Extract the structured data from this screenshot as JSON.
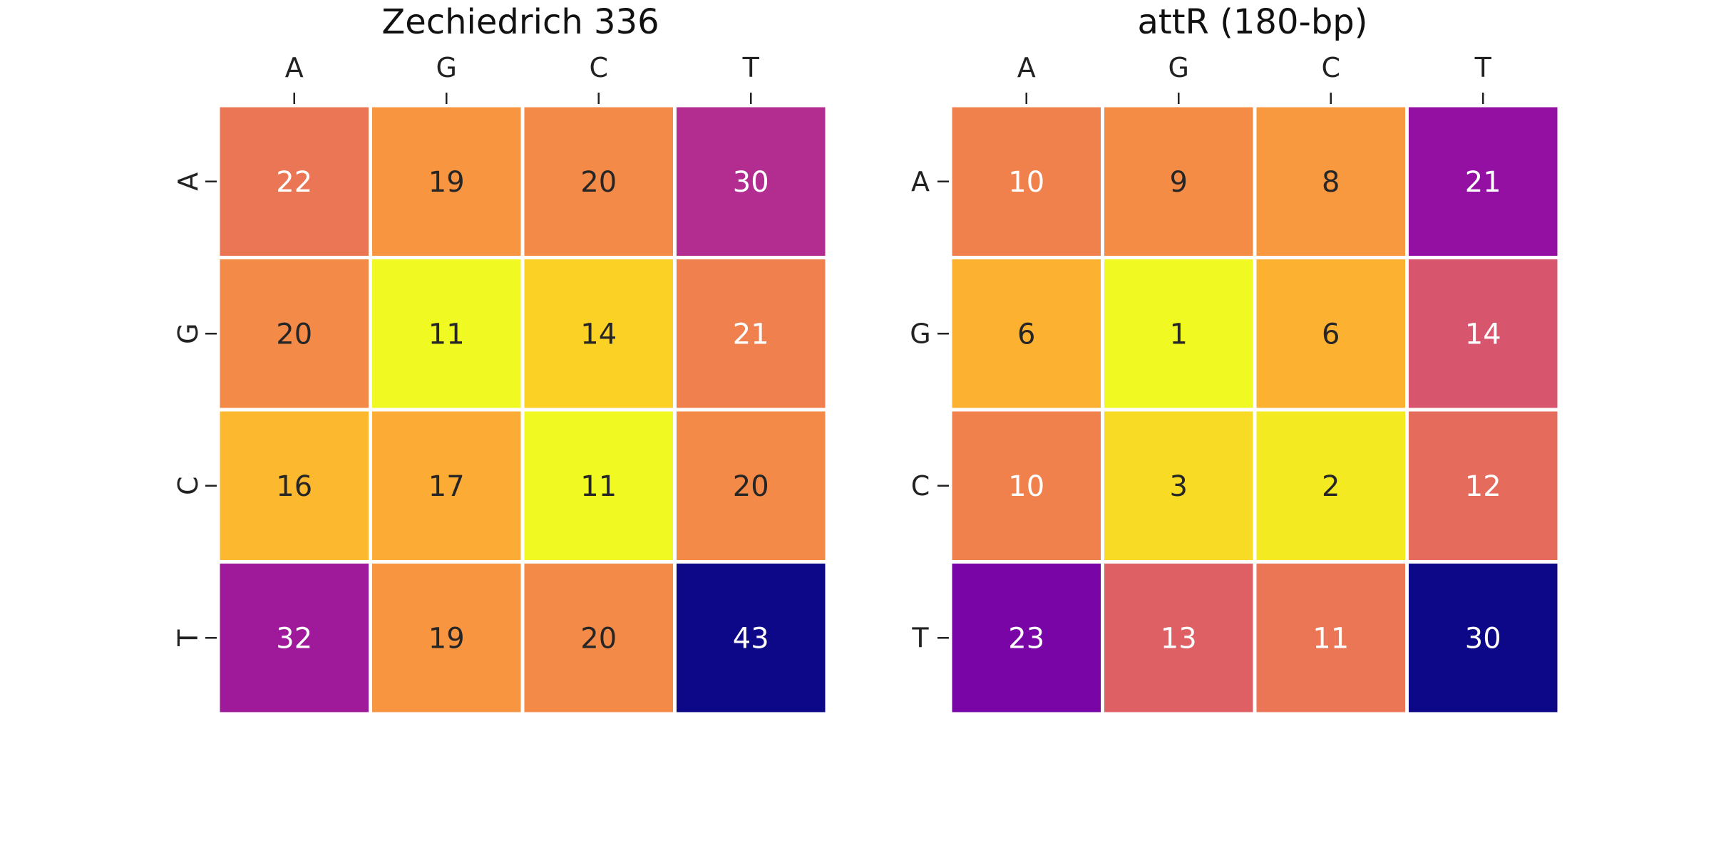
{
  "chart_data": [
    {
      "type": "heatmap",
      "title": "Zechiedrich 336",
      "x_categories": [
        "A",
        "G",
        "C",
        "T"
      ],
      "y_categories": [
        "A",
        "G",
        "C",
        "T"
      ],
      "values": [
        [
          22,
          19,
          20,
          30
        ],
        [
          20,
          11,
          14,
          21
        ],
        [
          16,
          17,
          11,
          20
        ],
        [
          32,
          19,
          20,
          43
        ]
      ],
      "colormap": "plasma_r",
      "colorbar": false,
      "annotated": true
    },
    {
      "type": "heatmap",
      "title": "attR (180-bp)",
      "x_categories": [
        "A",
        "G",
        "C",
        "T"
      ],
      "y_categories": [
        "A",
        "G",
        "C",
        "T"
      ],
      "values": [
        [
          10,
          9,
          8,
          21
        ],
        [
          6,
          1,
          6,
          14
        ],
        [
          10,
          3,
          2,
          12
        ],
        [
          23,
          13,
          11,
          30
        ]
      ],
      "colormap": "plasma_r",
      "colorbar": false,
      "annotated": true
    }
  ]
}
